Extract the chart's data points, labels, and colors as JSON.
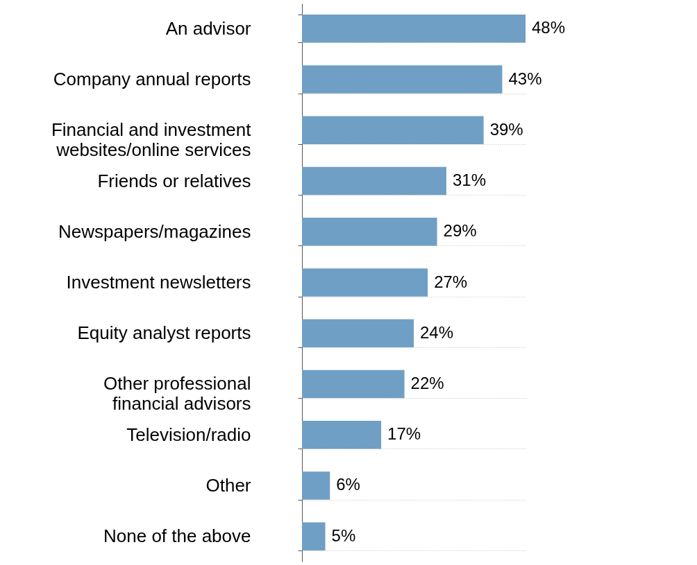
{
  "chart_data": {
    "type": "bar",
    "orientation": "horizontal",
    "categories": [
      "An advisor",
      "Company annual reports",
      "Financial and investment websites/online services",
      "Friends or relatives",
      "Newspapers/magazines",
      "Investment newsletters",
      "Equity analyst reports",
      "Other professional financial advisors",
      "Television/radio",
      "Other",
      "None of the above"
    ],
    "values": [
      48,
      43,
      39,
      31,
      29,
      27,
      24,
      22,
      17,
      6,
      5
    ],
    "value_labels": [
      "48%",
      "43%",
      "39%",
      "31%",
      "29%",
      "27%",
      "24%",
      "22%",
      "17%",
      "6%",
      "5%"
    ],
    "color": "#6f9fc4",
    "grid": "y"
  }
}
